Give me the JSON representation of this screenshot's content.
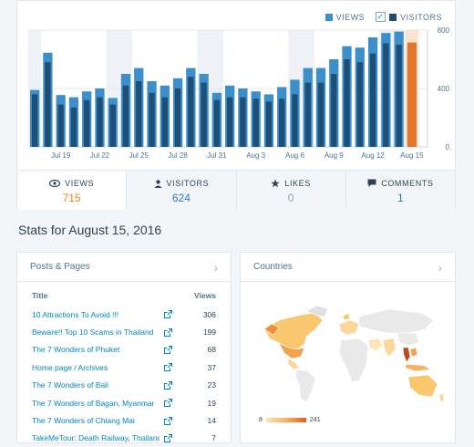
{
  "legend": {
    "views": "VIEWS",
    "visitors": "VISITORS",
    "views_color": "#3d8fcb",
    "visitors_color": "#1d4f77",
    "current_color": "#e27729"
  },
  "chart_data": {
    "type": "bar",
    "x_labels": [
      "Jul 19",
      "Jul 22",
      "Jul 25",
      "Jul 28",
      "Jul 31",
      "Aug 3",
      "Aug 6",
      "Aug 9",
      "Aug 12",
      "Aug 15"
    ],
    "x_label_positions": [
      2,
      5,
      8,
      11,
      14,
      17,
      20,
      23,
      26,
      29
    ],
    "views": [
      390,
      645,
      355,
      340,
      380,
      400,
      335,
      500,
      540,
      450,
      420,
      470,
      540,
      500,
      370,
      420,
      400,
      380,
      360,
      410,
      460,
      540,
      540,
      600,
      690,
      680,
      750,
      780,
      790,
      715
    ],
    "visitors": [
      360,
      580,
      290,
      270,
      320,
      340,
      290,
      420,
      450,
      370,
      340,
      400,
      480,
      440,
      320,
      340,
      340,
      330,
      310,
      330,
      360,
      440,
      440,
      500,
      600,
      580,
      640,
      710,
      700,
      624
    ],
    "ylim": [
      0,
      800
    ],
    "yticks": [
      "800",
      "400",
      "0"
    ],
    "weekend_shaded": [
      0,
      6,
      7,
      13,
      14,
      20,
      21,
      27,
      28
    ]
  },
  "tabs": [
    {
      "label": "VIEWS",
      "value": "715"
    },
    {
      "label": "VISITORS",
      "value": "624"
    },
    {
      "label": "LIKES",
      "value": "0"
    },
    {
      "label": "COMMENTS",
      "value": "1"
    }
  ],
  "stats_title": "Stats for August 15, 2016",
  "posts": {
    "heading": "Posts & Pages",
    "col_title": "Title",
    "col_views": "Views",
    "rows": [
      {
        "title": "10 Attractions To Avoid !!!",
        "views": "306"
      },
      {
        "title": "Beware!! Top 10 Scams in Thailand",
        "views": "199"
      },
      {
        "title": "The 7 Wonders of Phuket",
        "views": "68"
      },
      {
        "title": "Home page / Archives",
        "views": "37"
      },
      {
        "title": "The 7 Wonders of Bali",
        "views": "23"
      },
      {
        "title": "The 7 Wonders of Bagan, Myanmar",
        "views": "19"
      },
      {
        "title": "The 7 Wonders of Chiang Mai",
        "views": "14"
      },
      {
        "title": "TakeMeTour: Death Railway, Thailand",
        "views": "7"
      }
    ]
  },
  "countries": {
    "heading": "Countries",
    "scale_min": "8",
    "scale_max": "241"
  }
}
